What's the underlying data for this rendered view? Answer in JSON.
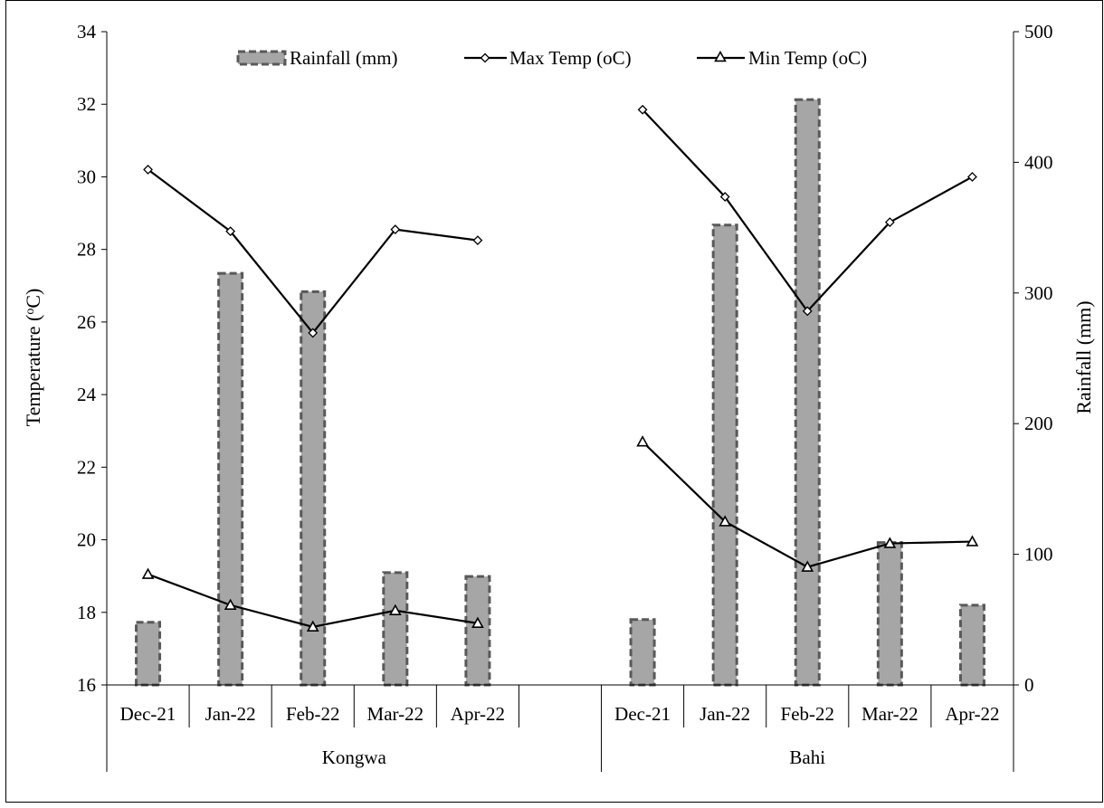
{
  "chart_data": {
    "type": "bar",
    "title": "",
    "groups": [
      {
        "name": "Kongwa",
        "categories": [
          "Dec-21",
          "Jan-22",
          "Feb-22",
          "Mar-22",
          "Apr-22"
        ]
      },
      {
        "name": "Bahi",
        "categories": [
          "Dec-21",
          "Jan-22",
          "Feb-22",
          "Mar-22",
          "Apr-22"
        ]
      }
    ],
    "series": [
      {
        "name": "Rainfall (mm)",
        "kind": "bar",
        "axis": "right",
        "values": [
          [
            48,
            315,
            null
          ],
          [
            null,
            301,
            86
          ],
          [
            83,
            null,
            null
          ]
        ],
        "by_group": {
          "Kongwa": [
            48,
            315,
            301,
            86,
            83
          ],
          "Bahi": [
            50,
            352,
            448,
            109,
            61
          ]
        }
      },
      {
        "name": "Max Temp (oC)",
        "kind": "line",
        "marker": "diamond",
        "axis": "left",
        "by_group": {
          "Kongwa": [
            30.2,
            28.5,
            25.7,
            28.55,
            28.25
          ],
          "Bahi": [
            31.85,
            29.45,
            26.3,
            28.75,
            30.0
          ]
        }
      },
      {
        "name": "Min Temp (oC)",
        "kind": "line",
        "marker": "triangle",
        "axis": "left",
        "by_group": {
          "Kongwa": [
            19.05,
            18.2,
            17.6,
            18.05,
            17.7
          ],
          "Bahi": [
            22.7,
            20.5,
            19.25,
            19.9,
            19.95
          ]
        }
      }
    ],
    "y_left": {
      "label": "Temperature (oC)",
      "label_main": "Temperature (",
      "label_sup": "o",
      "label_end": "C)",
      "lim": [
        16,
        34
      ],
      "ticks": [
        "16",
        "18",
        "20",
        "22",
        "24",
        "26",
        "28",
        "30",
        "32",
        "34"
      ]
    },
    "y_right": {
      "label": "Rainfall (mm)",
      "lim": [
        0,
        500
      ],
      "ticks": [
        "0",
        "100",
        "200",
        "300",
        "400",
        "500"
      ]
    },
    "legend": {
      "position": "top-center"
    },
    "grid": false,
    "colors": {
      "bar_fill": "#a6a6a6",
      "bar_border": "#595959",
      "line": "#000000"
    }
  }
}
